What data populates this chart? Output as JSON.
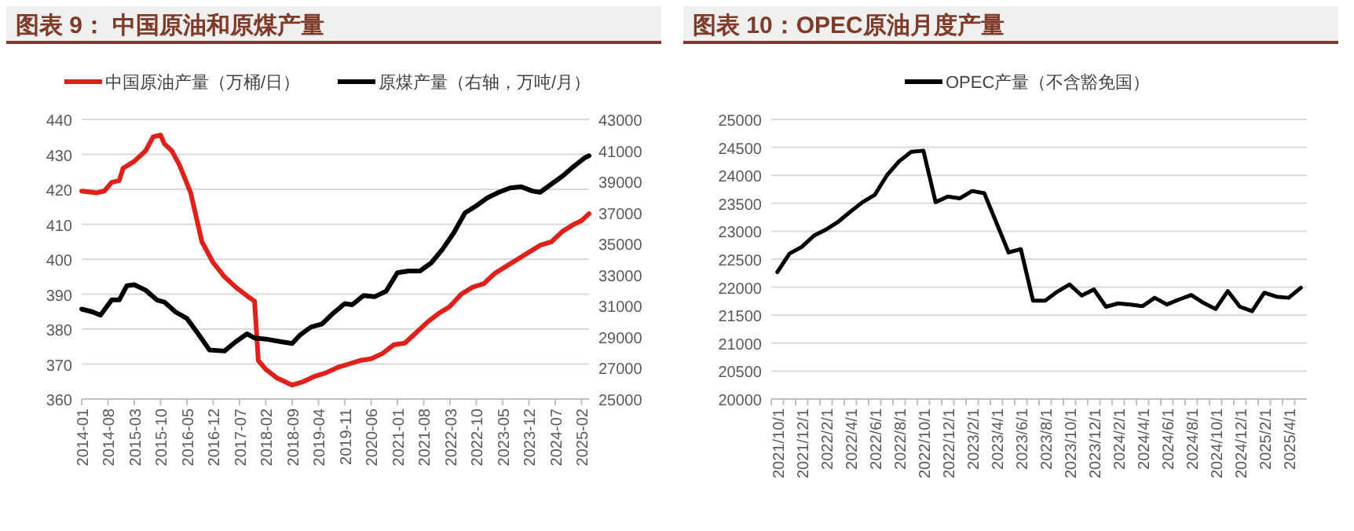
{
  "chart_data": [
    {
      "type": "line",
      "title": "图表 9：  中国原油和原煤产量",
      "legend": "top",
      "grid": "y",
      "marker": "none",
      "line_style": "solid",
      "xlim": [
        "2014-01",
        "2025-04"
      ],
      "xticks": [
        "2014-01",
        "2014-08",
        "2015-03",
        "2015-10",
        "2016-05",
        "2016-12",
        "2017-07",
        "2018-02",
        "2018-09",
        "2019-04",
        "2019-11",
        "2020-06",
        "2021-01",
        "2021-08",
        "2022-03",
        "2022-10",
        "2023-05",
        "2023-12",
        "2024-07",
        "2025-02"
      ],
      "ylim": [
        360,
        440
      ],
      "yticks": [
        360,
        370,
        380,
        390,
        400,
        410,
        420,
        430,
        440
      ],
      "y2lim": [
        25000,
        43000
      ],
      "y2ticks": [
        25000,
        27000,
        29000,
        31000,
        33000,
        35000,
        37000,
        39000,
        41000,
        43000
      ],
      "series": [
        {
          "name": "中国原油产量（万桶/日）",
          "color": "#e0201b",
          "axis": "y",
          "x": [
            "2014-01",
            "2014-05",
            "2014-07",
            "2014-09",
            "2014-11",
            "2014-12",
            "2015-03",
            "2015-06",
            "2015-08",
            "2015-10",
            "2015-11",
            "2016-01",
            "2016-03",
            "2016-06",
            "2016-09",
            "2016-12",
            "2017-03",
            "2017-06",
            "2017-09",
            "2017-11",
            "2017-12",
            "2018-02",
            "2018-05",
            "2018-08",
            "2018-09",
            "2018-12",
            "2019-03",
            "2019-06",
            "2019-09",
            "2019-12",
            "2020-03",
            "2020-06",
            "2020-09",
            "2020-12",
            "2021-03",
            "2021-06",
            "2021-09",
            "2021-12",
            "2022-03",
            "2022-06",
            "2022-09",
            "2022-12",
            "2023-03",
            "2023-06",
            "2023-09",
            "2023-12",
            "2024-03",
            "2024-06",
            "2024-09",
            "2024-12",
            "2025-02",
            "2025-04"
          ],
          "values": [
            419.5,
            419,
            419.5,
            422,
            422.5,
            426,
            428,
            431,
            435,
            435.5,
            433,
            431,
            427,
            419,
            405,
            399,
            395,
            392,
            389.5,
            388,
            371,
            368.5,
            366,
            364.5,
            364,
            365,
            366.5,
            367.5,
            369,
            370,
            371,
            371.5,
            373,
            375.5,
            376,
            379,
            382,
            384.5,
            386.5,
            390,
            392,
            393,
            396,
            398,
            400,
            402,
            404,
            405,
            408,
            410,
            411,
            413
          ]
        },
        {
          "name": "原煤产量（右轴，万吨/月）",
          "color": "#000000",
          "axis": "y2",
          "x": [
            "2014-01",
            "2014-04",
            "2014-06",
            "2014-09",
            "2014-11",
            "2015-01",
            "2015-03",
            "2015-06",
            "2015-09",
            "2015-11",
            "2016-02",
            "2016-05",
            "2016-08",
            "2016-11",
            "2017-03",
            "2017-06",
            "2017-09",
            "2017-11",
            "2018-02",
            "2018-06",
            "2018-09",
            "2018-11",
            "2019-02",
            "2019-05",
            "2019-08",
            "2019-11",
            "2020-01",
            "2020-04",
            "2020-07",
            "2020-10",
            "2021-01",
            "2021-04",
            "2021-07",
            "2021-10",
            "2022-01",
            "2022-04",
            "2022-07",
            "2022-10",
            "2023-01",
            "2023-04",
            "2023-07",
            "2023-10",
            "2024-01",
            "2024-03",
            "2024-06",
            "2024-09",
            "2024-12",
            "2025-03",
            "2025-04"
          ],
          "values": [
            30790,
            30600,
            30400,
            31380,
            31380,
            32290,
            32360,
            32010,
            31380,
            31240,
            30600,
            30190,
            29200,
            28160,
            28090,
            28690,
            29200,
            28930,
            28860,
            28690,
            28580,
            29100,
            29630,
            29840,
            30540,
            31140,
            31070,
            31660,
            31590,
            31940,
            33130,
            33240,
            33240,
            33760,
            34640,
            35690,
            36980,
            37440,
            37960,
            38310,
            38590,
            38660,
            38380,
            38310,
            38840,
            39360,
            39990,
            40550,
            40660
          ]
        }
      ]
    },
    {
      "type": "line",
      "title": "图表 10：OPEC原油月度产量",
      "legend": "top",
      "grid": "y",
      "marker": "none",
      "line_style": "solid",
      "categories": [
        "2021/10/1",
        null,
        "2021/12/1",
        null,
        "2022/2/1",
        null,
        "2022/4/1",
        null,
        "2022/6/1",
        null,
        "2022/8/1",
        null,
        "2022/10/1",
        null,
        "2022/12/1",
        null,
        "2023/2/1",
        null,
        "2023/4/1",
        null,
        "2023/6/1",
        null,
        "2023/8/1",
        null,
        "2023/10/1",
        null,
        "2023/12/1",
        null,
        "2024/2/1",
        null,
        "2024/4/1",
        null,
        "2024/6/1",
        null,
        "2024/8/1",
        null,
        "2024/10/1",
        null,
        "2024/12/1",
        null,
        "2025/2/1",
        null,
        "2025/4/1",
        null
      ],
      "ylim": [
        20000,
        25000
      ],
      "yticks": [
        20000,
        20500,
        21000,
        21500,
        22000,
        22500,
        23000,
        23500,
        24000,
        24500,
        25000
      ],
      "series": [
        {
          "name": "OPEC产量（不含豁免国）",
          "color": "#000000",
          "values": [
            22270,
            22600,
            22720,
            22920,
            23030,
            23170,
            23350,
            23520,
            23650,
            24000,
            24250,
            24420,
            24440,
            23520,
            23620,
            23590,
            23720,
            23680,
            23150,
            22620,
            22680,
            21760,
            21760,
            21920,
            22050,
            21850,
            21960,
            21650,
            21710,
            21690,
            21660,
            21810,
            21690,
            21780,
            21860,
            21720,
            21610,
            21930,
            21650,
            21570,
            21900,
            21830,
            21810,
            21990
          ]
        }
      ]
    }
  ]
}
